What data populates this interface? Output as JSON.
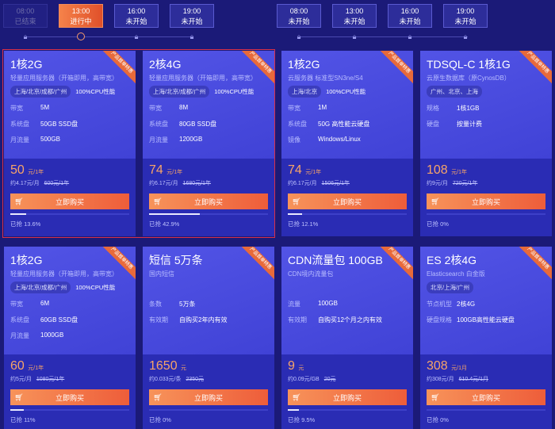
{
  "timeline_left": [
    {
      "time": "08:00",
      "status": "已结束",
      "state": "done"
    },
    {
      "time": "13:00",
      "status": "进行中",
      "state": "active"
    },
    {
      "time": "16:00",
      "status": "未开始",
      "state": "pending"
    },
    {
      "time": "19:00",
      "status": "未开始",
      "state": "pending"
    }
  ],
  "timeline_right": [
    {
      "time": "08:00",
      "status": "未开始"
    },
    {
      "time": "13:00",
      "status": "未开始"
    },
    {
      "time": "16:00",
      "status": "未开始"
    },
    {
      "time": "19:00",
      "status": "未开始"
    }
  ],
  "ribbon": "产品首单特惠",
  "buy_label": "立即购买",
  "colors": {
    "background": "#1b1a78",
    "accent": "#f7935a",
    "price": "#f7a468",
    "selection": "#d8304a"
  },
  "cards": [
    {
      "title": "1核2G",
      "subtitle": "轻量应用服务器（开箱即用，高带宽）",
      "tags": [
        "上海/北京/成都/广州",
        "100%CPU性能"
      ],
      "specs": [
        [
          "带宽",
          "5M"
        ],
        [
          "系统盘",
          "50GB SSD盘"
        ],
        [
          "月流量",
          "500GB"
        ]
      ],
      "price": "50",
      "unit": "元/1年",
      "per": "约4.17元/月",
      "orig": "600元/1年",
      "sold": "已抢 13.6%",
      "progress": 13.6
    },
    {
      "title": "2核4G",
      "subtitle": "轻量应用服务器（开箱即用，高带宽）",
      "tags": [
        "上海/北京/成都/广州",
        "100%CPU性能"
      ],
      "specs": [
        [
          "带宽",
          "8M"
        ],
        [
          "系统盘",
          "80GB SSD盘"
        ],
        [
          "月流量",
          "1200GB"
        ]
      ],
      "price": "74",
      "unit": "元/1年",
      "per": "约6.17元/月",
      "orig": "1680元/1年",
      "sold": "已抢 42.9%",
      "progress": 42.9
    },
    {
      "title": "1核2G",
      "subtitle": "云服务器 标准型SN3ne/S4",
      "tags": [
        "上海/北京",
        "100%CPU性能"
      ],
      "specs": [
        [
          "带宽",
          "1M"
        ],
        [
          "系统盘",
          "50G 高性能云硬盘"
        ],
        [
          "镜像",
          "Windows/Linux"
        ]
      ],
      "price": "74",
      "unit": "元/1年",
      "per": "约6.17元/月",
      "orig": "1506元/1年",
      "sold": "已抢 12.1%",
      "progress": 12.1
    },
    {
      "title": "TDSQL-C 1核1G",
      "subtitle": "云原生数据库（原CynosDB）",
      "tags": [
        "广州、北京、上海"
      ],
      "specs": [
        [
          "规格",
          "1核1GB"
        ],
        [
          "硬盘",
          "按量计费"
        ]
      ],
      "price": "108",
      "unit": "元/1年",
      "per": "约9元/月",
      "orig": "720元/1年",
      "sold": "已抢 0%",
      "progress": 0
    },
    {
      "title": "1核2G",
      "subtitle": "轻量应用服务器（开箱即用，高带宽）",
      "tags": [
        "上海/北京/成都/广州",
        "100%CPU性能"
      ],
      "specs": [
        [
          "带宽",
          "6M"
        ],
        [
          "系统盘",
          "60GB SSD盘"
        ],
        [
          "月流量",
          "1000GB"
        ]
      ],
      "price": "60",
      "unit": "元/1年",
      "per": "约5元/月",
      "orig": "1080元/1年",
      "sold": "已抢 11%",
      "progress": 11
    },
    {
      "title": "短信 5万条",
      "subtitle": "国内短信",
      "tags": [],
      "specs": [
        [
          "条数",
          "5万条"
        ],
        [
          "有效期",
          "自购买2年内有效"
        ]
      ],
      "price": "1650",
      "unit": "元",
      "per": "约0.033元/条",
      "orig": "2350元",
      "sold": "已抢 0%",
      "progress": 0
    },
    {
      "title": "CDN流量包 100GB",
      "subtitle": "CDN境内流量包",
      "tags": [],
      "specs": [
        [
          "流量",
          "100GB"
        ],
        [
          "有效期",
          "自购买12个月之内有效"
        ]
      ],
      "price": "9",
      "unit": "元",
      "per": "约0.09元/GB",
      "orig": "20元",
      "sold": "已抢 9.5%",
      "progress": 9.5
    },
    {
      "title": "ES 2核4G",
      "subtitle": "Elasticsearch 白金版",
      "tags": [
        "北京/上海/广州"
      ],
      "specs": [
        [
          "节点机型",
          "2核4G"
        ],
        [
          "硬盘规格",
          "100GB高性能云硬盘"
        ]
      ],
      "price": "308",
      "unit": "元/1月",
      "per": "约308元/月",
      "orig": "610.4元/1月",
      "sold": "已抢 0%",
      "progress": 0
    }
  ]
}
